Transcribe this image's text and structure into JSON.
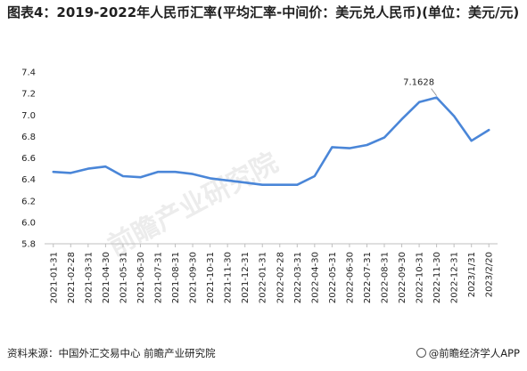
{
  "title": "图表4：2019-2022年人民币汇率(平均汇率-中间价：美元兑人民币)(单位：美元/元)",
  "source": "资料来源：中国外汇交易中心 前瞻产业研究院",
  "brand": "@前瞻经济学人APP",
  "watermarks": [
    "前瞻产业研究院"
  ],
  "colors": {
    "line": "#4a86d8",
    "axis": "#bfbfbf",
    "text": "#222222"
  },
  "chart_data": {
    "type": "line",
    "categories": [
      "2021-01-31",
      "2021-02-28",
      "2021-03-31",
      "2021-04-30",
      "2021-05-31",
      "2021-06-30",
      "2021-07-31",
      "2021-08-31",
      "2021-09-30",
      "2021-10-31",
      "2021-11-30",
      "2021-12-31",
      "2022-01-31",
      "2022-02-28",
      "2022-03-31",
      "2022-04-30",
      "2022-05-31",
      "2022-06-30",
      "2022-07-31",
      "2022-08-31",
      "2022-09-30",
      "2022-10-31",
      "2022-11-30",
      "2022-12-31",
      "2023/1/31",
      "2023/2/20"
    ],
    "series": [
      {
        "values": [
          6.47,
          6.46,
          6.5,
          6.52,
          6.43,
          6.42,
          6.47,
          6.47,
          6.45,
          6.41,
          6.39,
          6.37,
          6.35,
          6.35,
          6.35,
          6.43,
          6.7,
          6.69,
          6.72,
          6.79,
          6.96,
          7.12,
          7.1628,
          6.99,
          6.76,
          6.86
        ]
      }
    ],
    "annotations": [
      {
        "category": "2022-11-30",
        "text": "7.1628"
      }
    ],
    "yticks": [
      "5.8",
      "6.0",
      "6.2",
      "6.4",
      "6.6",
      "6.8",
      "7.0",
      "7.2",
      "7.4"
    ],
    "ylim": [
      5.8,
      7.4
    ],
    "grid": false,
    "legend": "none"
  }
}
